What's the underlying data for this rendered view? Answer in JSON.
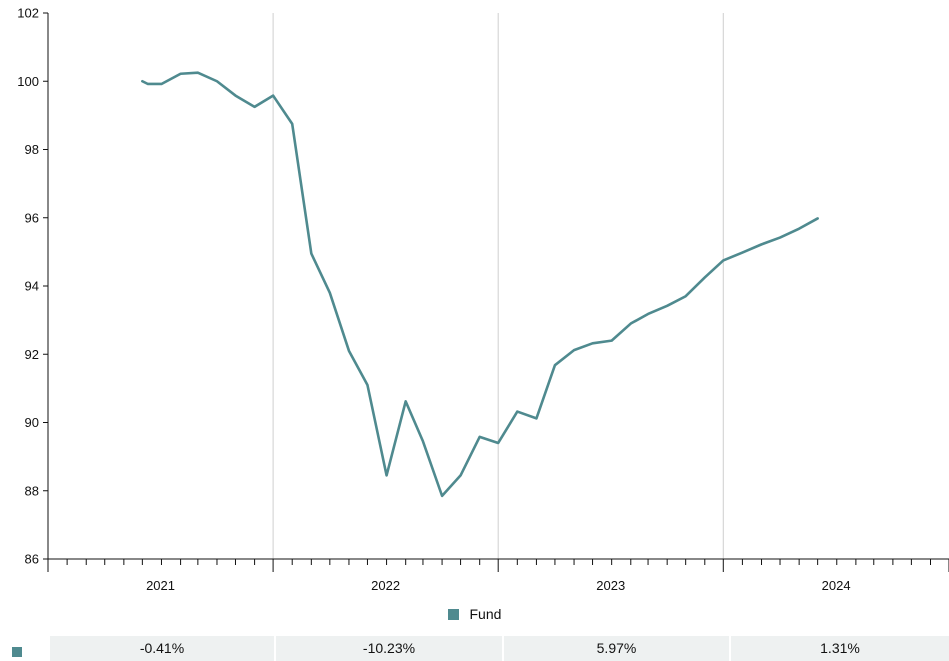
{
  "chart_data": {
    "type": "line",
    "series": [
      {
        "name": "Fund",
        "color": "#4f8a8f",
        "points": [
          [
            "2020-12-01",
            100.0
          ],
          [
            "2020-12-10",
            99.92
          ],
          [
            "2021-01-01",
            99.92
          ],
          [
            "2021-02-01",
            100.22
          ],
          [
            "2021-03-01",
            100.25
          ],
          [
            "2021-04-01",
            100.0
          ],
          [
            "2021-05-01",
            99.58
          ],
          [
            "2021-06-01",
            99.25
          ],
          [
            "2021-07-01",
            99.58
          ],
          [
            "2021-08-01",
            98.75
          ],
          [
            "2021-09-01",
            94.95
          ],
          [
            "2021-10-01",
            93.8
          ],
          [
            "2021-11-01",
            92.1
          ],
          [
            "2021-12-01",
            91.1
          ],
          [
            "2022-01-01",
            88.45
          ],
          [
            "2022-02-01",
            90.62
          ],
          [
            "2022-03-01",
            89.45
          ],
          [
            "2022-04-01",
            87.85
          ],
          [
            "2022-05-01",
            88.45
          ],
          [
            "2022-06-01",
            89.58
          ],
          [
            "2022-07-01",
            89.4
          ],
          [
            "2022-08-01",
            90.32
          ],
          [
            "2022-09-01",
            90.12
          ],
          [
            "2022-10-01",
            91.68
          ],
          [
            "2022-11-01",
            92.12
          ],
          [
            "2022-12-01",
            92.32
          ],
          [
            "2023-01-01",
            92.4
          ],
          [
            "2023-02-01",
            92.9
          ],
          [
            "2023-03-01",
            93.18
          ],
          [
            "2023-04-01",
            93.42
          ],
          [
            "2023-05-01",
            93.7
          ],
          [
            "2023-06-01",
            94.25
          ],
          [
            "2023-07-01",
            94.75
          ],
          [
            "2023-08-01",
            94.98
          ],
          [
            "2023-09-01",
            95.22
          ],
          [
            "2023-10-01",
            95.42
          ],
          [
            "2023-11-01",
            95.68
          ],
          [
            "2023-12-01",
            95.98
          ]
        ]
      }
    ],
    "ylim": [
      86,
      102
    ],
    "yticks": [
      "86",
      "88",
      "90",
      "92",
      "94",
      "96",
      "98",
      "100",
      "102"
    ],
    "xticks": [
      "2021",
      "2022",
      "2023",
      "2024"
    ],
    "xlim": [
      "2020-07-01",
      "2024-07-01"
    ],
    "year_boundaries": [
      "2021-07-01",
      "2022-07-01",
      "2023-07-01"
    ],
    "grid": "vertical lines at year boundaries",
    "legend_placement": "bottom-center",
    "legend": [
      {
        "label": "Fund",
        "color": "#4f8a8f"
      }
    ],
    "annual_returns": [
      "-0.41%",
      "-10.23%",
      "5.97%",
      "1.31%"
    ]
  }
}
